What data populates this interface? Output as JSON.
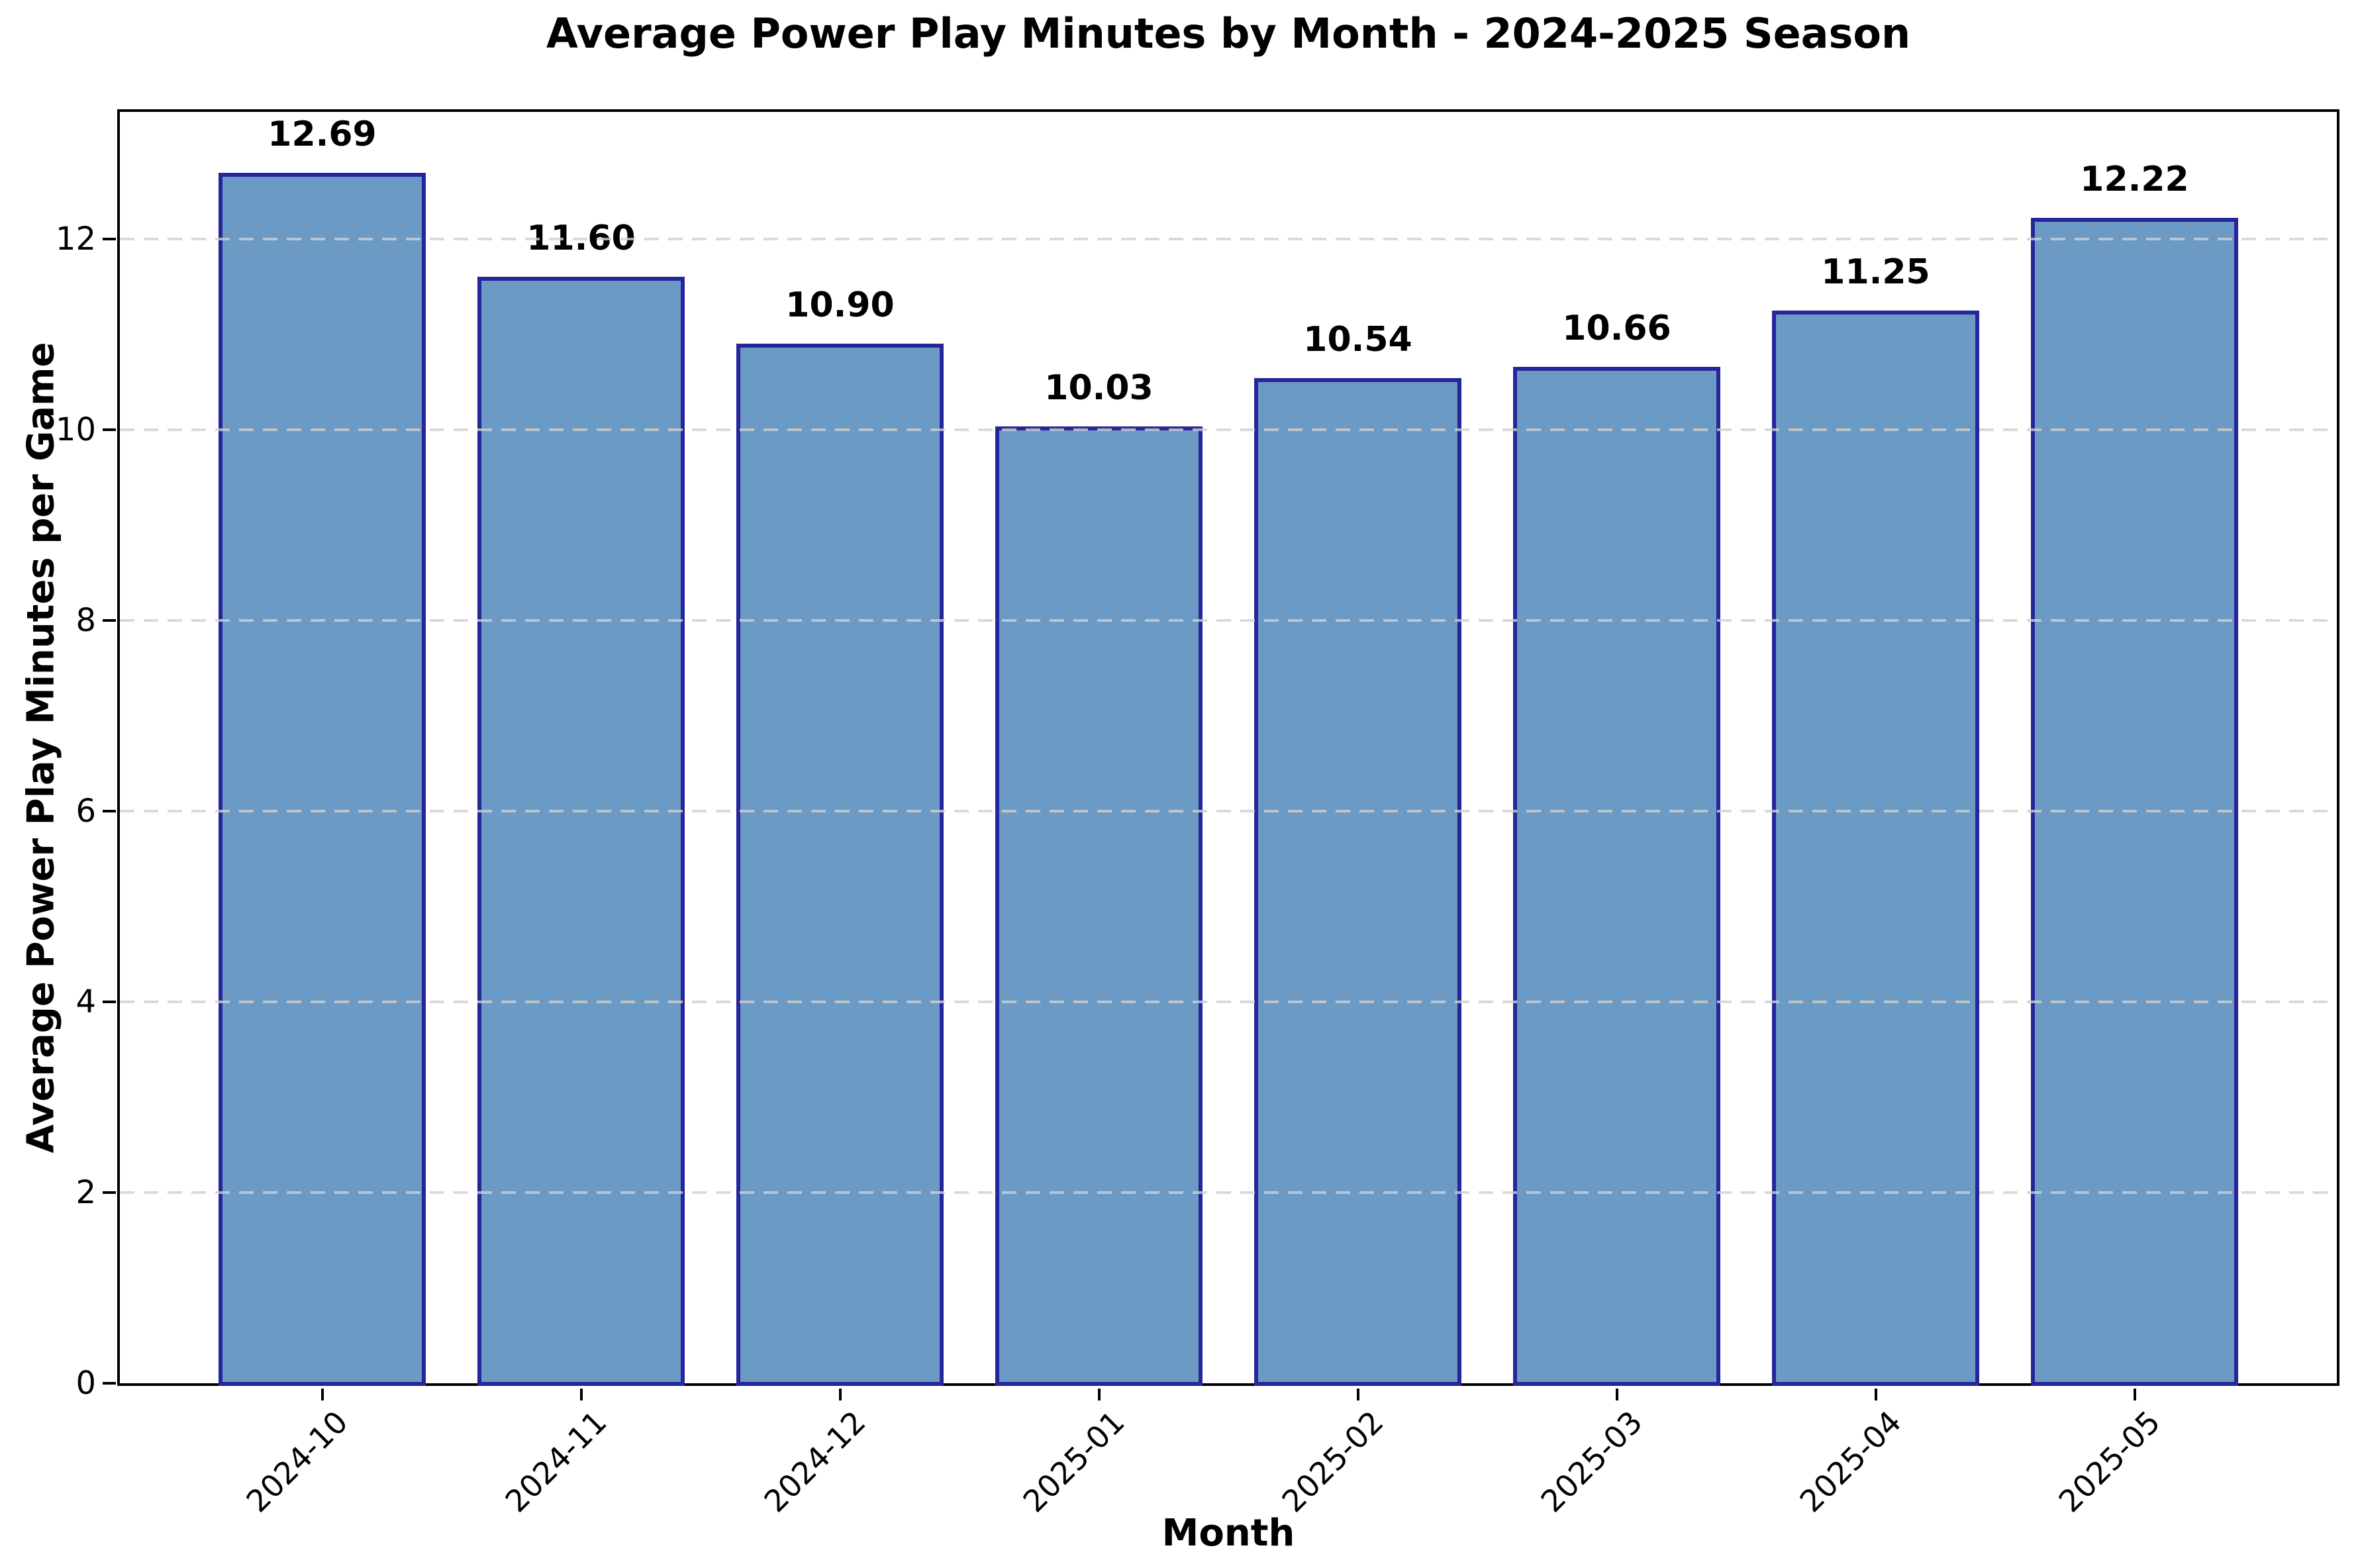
{
  "chart_data": {
    "type": "bar",
    "title": "Average Power Play Minutes by Month - 2024-2025 Season",
    "xlabel": "Month",
    "ylabel": "Average Power Play Minutes per Game",
    "categories": [
      "2024-10",
      "2024-11",
      "2024-12",
      "2025-01",
      "2025-02",
      "2025-03",
      "2025-04",
      "2025-05"
    ],
    "values": [
      12.69,
      11.6,
      10.9,
      10.03,
      10.54,
      10.66,
      11.25,
      12.22
    ],
    "value_labels": [
      "12.69",
      "11.60",
      "10.90",
      "10.03",
      "10.54",
      "10.66",
      "11.25",
      "12.22"
    ],
    "y_ticks": [
      0,
      2,
      4,
      6,
      8,
      10,
      12
    ],
    "ylim": [
      0,
      13.33
    ],
    "grid": {
      "axis": "y",
      "style": "dashed",
      "above_bars": true
    },
    "legend": "none",
    "colors": {
      "bar_fill": "#6B9AC5",
      "bar_edge": "#26269A",
      "gridline": "#D0D0D0",
      "spine": "#000000",
      "text": "#000000",
      "background": "#FFFFFF"
    }
  }
}
